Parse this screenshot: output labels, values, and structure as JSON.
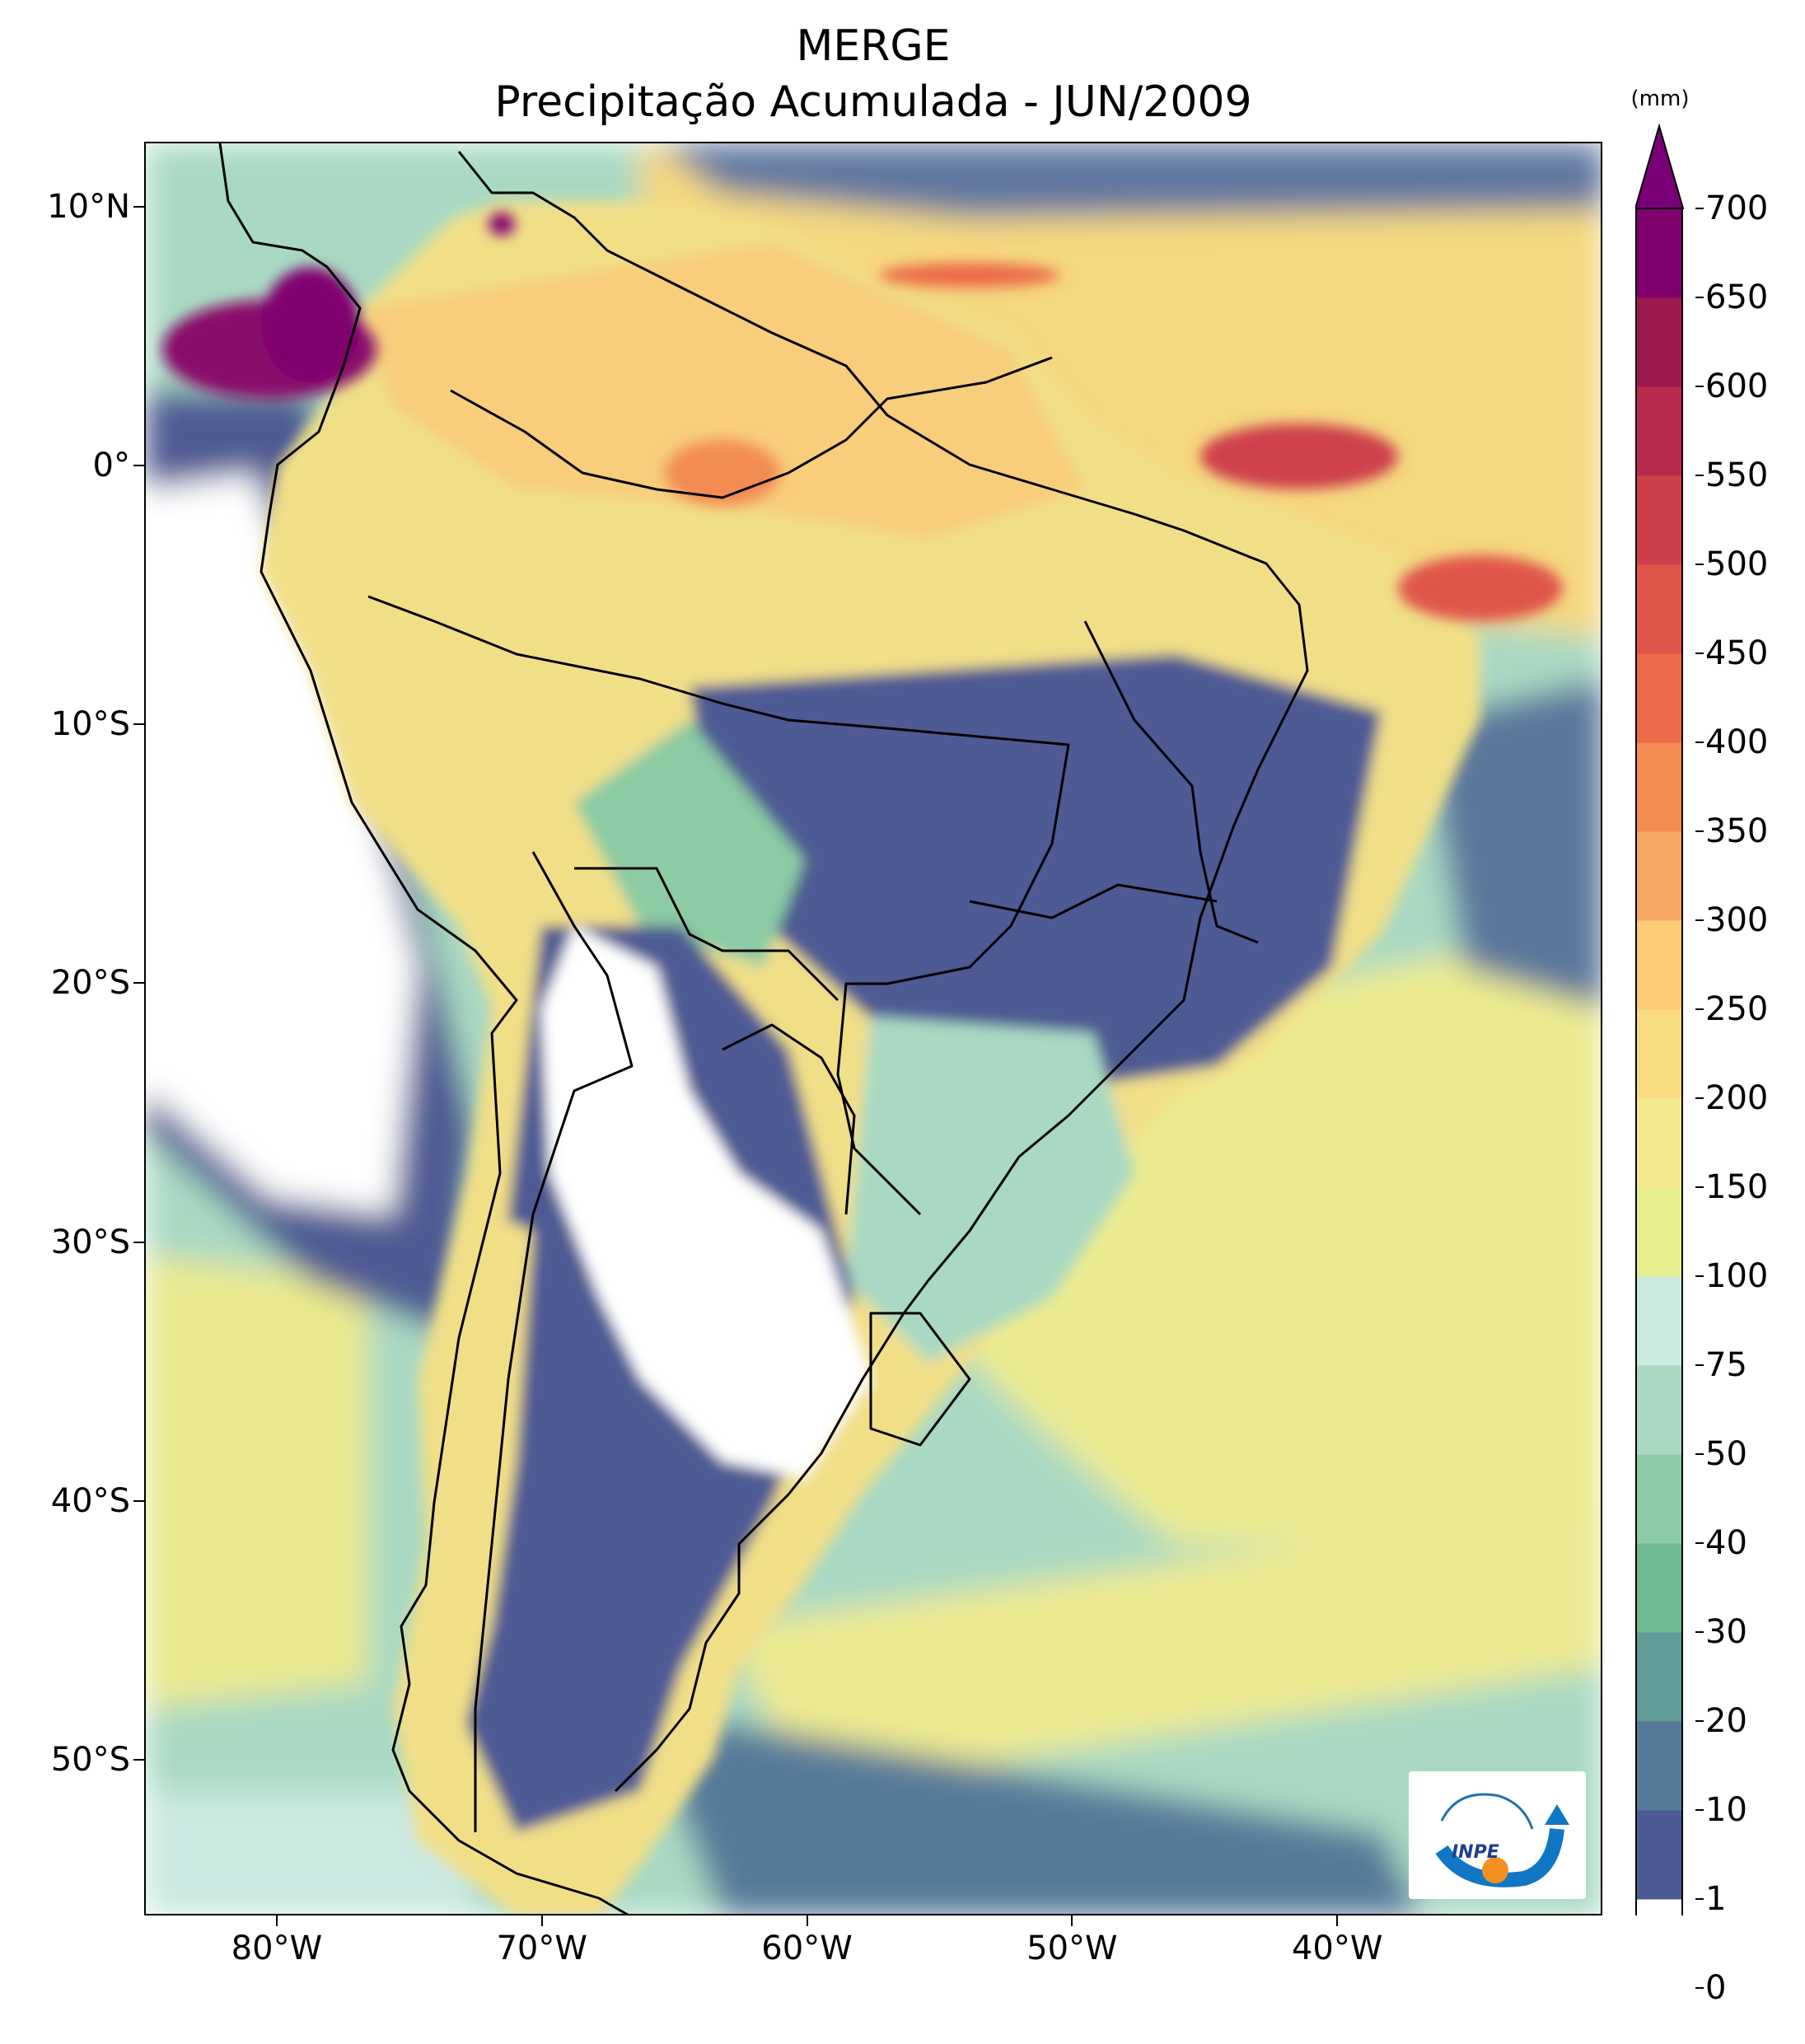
{
  "title": "MERGE",
  "subtitle": "Precipitação Acumulada - JUN/2009",
  "y_ticks": [
    {
      "label": "10°N",
      "lat": 10
    },
    {
      "label": "0°",
      "lat": 0
    },
    {
      "label": "10°S",
      "lat": -10
    },
    {
      "label": "20°S",
      "lat": -20
    },
    {
      "label": "30°S",
      "lat": -30
    },
    {
      "label": "40°S",
      "lat": -40
    },
    {
      "label": "50°S",
      "lat": -50
    }
  ],
  "x_ticks": [
    {
      "label": "80°W",
      "lon": -80
    },
    {
      "label": "70°W",
      "lon": -70
    },
    {
      "label": "60°W",
      "lon": -60
    },
    {
      "label": "50°W",
      "lon": -50
    },
    {
      "label": "40°W",
      "lon": -40
    }
  ],
  "map_extent": {
    "lon_min": -85,
    "lon_max": -30,
    "lat_min": -56,
    "lat_max": 12.5
  },
  "colorbar": {
    "units": "(mm)",
    "levels": [
      "0",
      "1",
      "10",
      "20",
      "30",
      "40",
      "50",
      "75",
      "100",
      "150",
      "200",
      "250",
      "300",
      "350",
      "400",
      "450",
      "500",
      "550",
      "600",
      "650",
      "700"
    ],
    "colors": [
      "#ffffff",
      "#4d5a93",
      "#567a9a",
      "#609b98",
      "#6dbb8f",
      "#8ccba3",
      "#a9d9c3",
      "#cbe8e1",
      "#e8ed8e",
      "#f3ea8f",
      "#f8db80",
      "#fbcb76",
      "#f6a964",
      "#f38b53",
      "#ec6b48",
      "#e0554a",
      "#cf3f4b",
      "#b82a4c",
      "#9e194f",
      "#80006e"
    ],
    "extend_color": "#7a0078"
  },
  "logo_text": "INPE",
  "colors": {
    "ocean_base": "#a9d9c3",
    "coastline": "#000000"
  },
  "chart_data": {
    "type": "heatmap",
    "title": "MERGE",
    "subtitle": "Precipitação Acumulada - JUN/2009",
    "units": "(mm)",
    "xlim": [
      -85,
      -30
    ],
    "ylim": [
      -56,
      12.5
    ],
    "levels": [
      0,
      1,
      10,
      20,
      30,
      40,
      50,
      75,
      100,
      150,
      200,
      250,
      300,
      350,
      400,
      450,
      500,
      550,
      600,
      650,
      700
    ]
  }
}
